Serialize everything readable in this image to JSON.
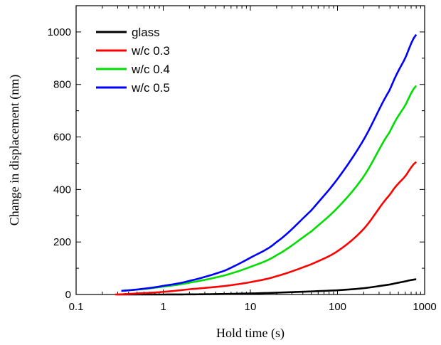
{
  "chart_data": {
    "type": "line",
    "title": "",
    "xlabel": "Hold time (s)",
    "ylabel": "Change in displacement (nm)",
    "x_scale": "log",
    "xlim": [
      0.1,
      1000
    ],
    "ylim": [
      0,
      1100
    ],
    "x_ticks": [
      0.1,
      1,
      10,
      100,
      1000
    ],
    "x_tick_labels": [
      "0.1",
      "1",
      "10",
      "100",
      "1000"
    ],
    "y_ticks": [
      0,
      200,
      400,
      600,
      800,
      1000
    ],
    "y_tick_labels": [
      "0",
      "200",
      "400",
      "600",
      "800",
      "1000"
    ],
    "grid": false,
    "legend_position": "top-left",
    "series": [
      {
        "name": "glass",
        "color": "#000000",
        "x": [
          0.3,
          1,
          3,
          10,
          30,
          100,
          200,
          400,
          600,
          800
        ],
        "y": [
          0,
          0,
          1,
          4,
          9,
          16,
          24,
          38,
          50,
          58
        ]
      },
      {
        "name": "w/c 0.3",
        "color": "#ff0000",
        "x": [
          0.28,
          0.5,
          1,
          2,
          5,
          10,
          20,
          50,
          100,
          200,
          400,
          600,
          800
        ],
        "y": [
          0,
          4,
          10,
          20,
          32,
          47,
          70,
          115,
          165,
          250,
          380,
          450,
          505
        ]
      },
      {
        "name": "w/c 0.4",
        "color": "#00dd00",
        "x": [
          0.35,
          0.6,
          1,
          2,
          5,
          10,
          20,
          50,
          100,
          200,
          400,
          600,
          800
        ],
        "y": [
          15,
          21,
          30,
          45,
          72,
          105,
          150,
          240,
          330,
          450,
          620,
          720,
          795
        ]
      },
      {
        "name": "w/c 0.5",
        "color": "#0000ff",
        "x": [
          0.33,
          0.6,
          1,
          2,
          5,
          10,
          20,
          50,
          100,
          200,
          400,
          600,
          800
        ],
        "y": [
          14,
          22,
          33,
          52,
          90,
          140,
          200,
          320,
          440,
          590,
          780,
          900,
          990
        ]
      }
    ]
  }
}
